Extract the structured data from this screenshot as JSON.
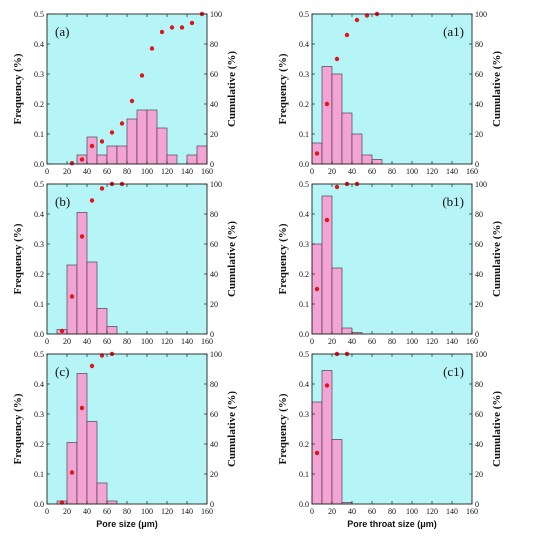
{
  "colors": {
    "plot_background": "#b5f5f7",
    "bar_fill": "#f4a4d4",
    "bar_stroke": "#333333",
    "cumulative_marker": "#e0141a"
  },
  "chart_data": [
    {
      "type": "bar",
      "panel_label": "(a)",
      "xlabel": "",
      "ylabel": "Frequency (%)",
      "ylabel_right": "Cumulative (%)",
      "xlim": [
        0,
        160
      ],
      "ylim": [
        0,
        0.5
      ],
      "ylim_right": [
        0,
        100
      ],
      "x_ticks": [
        0,
        20,
        40,
        60,
        80,
        100,
        120,
        140,
        160
      ],
      "y_ticks": [
        "0.0",
        "0.1",
        "0.2",
        "0.3",
        "0.4",
        "0.5"
      ],
      "y_ticks_right": [
        0,
        20,
        40,
        60,
        80,
        100
      ],
      "bin_width": 10,
      "bars": [
        {
          "x0": 30,
          "value": 0.03
        },
        {
          "x0": 40,
          "value": 0.09
        },
        {
          "x0": 50,
          "value": 0.03
        },
        {
          "x0": 60,
          "value": 0.06
        },
        {
          "x0": 70,
          "value": 0.06
        },
        {
          "x0": 80,
          "value": 0.15
        },
        {
          "x0": 90,
          "value": 0.18
        },
        {
          "x0": 100,
          "value": 0.18
        },
        {
          "x0": 110,
          "value": 0.12
        },
        {
          "x0": 120,
          "value": 0.03
        },
        {
          "x0": 140,
          "value": 0.03
        },
        {
          "x0": 150,
          "value": 0.06
        }
      ],
      "cumulative": [
        {
          "x": 25,
          "y": 0.5
        },
        {
          "x": 35,
          "y": 3
        },
        {
          "x": 45,
          "y": 12
        },
        {
          "x": 55,
          "y": 15
        },
        {
          "x": 65,
          "y": 21
        },
        {
          "x": 75,
          "y": 27
        },
        {
          "x": 85,
          "y": 42
        },
        {
          "x": 95,
          "y": 59
        },
        {
          "x": 105,
          "y": 77
        },
        {
          "x": 115,
          "y": 88
        },
        {
          "x": 125,
          "y": 91
        },
        {
          "x": 135,
          "y": 91
        },
        {
          "x": 145,
          "y": 94
        },
        {
          "x": 155,
          "y": 100
        }
      ]
    },
    {
      "type": "bar",
      "panel_label": "(a1)",
      "xlabel": "",
      "ylabel": "Frequency (%)",
      "ylabel_right": "Cumulative (%)",
      "xlim": [
        0,
        160
      ],
      "ylim": [
        0,
        0.5
      ],
      "ylim_right": [
        0,
        100
      ],
      "x_ticks": [
        0,
        20,
        40,
        60,
        80,
        100,
        120,
        140,
        160
      ],
      "y_ticks": [
        "0.0",
        "0.1",
        "0.2",
        "0.3",
        "0.4",
        "0.5"
      ],
      "y_ticks_right": [
        0,
        20,
        40,
        60,
        80,
        100
      ],
      "bin_width": 10,
      "bars": [
        {
          "x0": 0,
          "value": 0.07
        },
        {
          "x0": 10,
          "value": 0.325
        },
        {
          "x0": 20,
          "value": 0.3
        },
        {
          "x0": 30,
          "value": 0.17
        },
        {
          "x0": 40,
          "value": 0.1
        },
        {
          "x0": 50,
          "value": 0.03
        },
        {
          "x0": 60,
          "value": 0.015
        }
      ],
      "cumulative": [
        {
          "x": 5,
          "y": 7
        },
        {
          "x": 15,
          "y": 40
        },
        {
          "x": 25,
          "y": 70
        },
        {
          "x": 35,
          "y": 86
        },
        {
          "x": 45,
          "y": 96
        },
        {
          "x": 55,
          "y": 99
        },
        {
          "x": 65,
          "y": 100
        }
      ]
    },
    {
      "type": "bar",
      "panel_label": "(b)",
      "xlabel": "",
      "ylabel": "Frequency (%)",
      "ylabel_right": "Cumulative (%)",
      "xlim": [
        0,
        160
      ],
      "ylim": [
        0,
        0.5
      ],
      "ylim_right": [
        0,
        100
      ],
      "x_ticks": [
        0,
        20,
        40,
        60,
        80,
        100,
        120,
        140,
        160
      ],
      "y_ticks": [
        "0.0",
        "0.1",
        "0.2",
        "0.3",
        "0.4",
        "0.5"
      ],
      "y_ticks_right": [
        0,
        20,
        40,
        60,
        80,
        100
      ],
      "bin_width": 10,
      "bars": [
        {
          "x0": 10,
          "value": 0.015
        },
        {
          "x0": 20,
          "value": 0.23
        },
        {
          "x0": 30,
          "value": 0.405
        },
        {
          "x0": 40,
          "value": 0.24
        },
        {
          "x0": 50,
          "value": 0.085
        },
        {
          "x0": 60,
          "value": 0.025
        }
      ],
      "cumulative": [
        {
          "x": 15,
          "y": 2
        },
        {
          "x": 25,
          "y": 25
        },
        {
          "x": 35,
          "y": 65
        },
        {
          "x": 45,
          "y": 89
        },
        {
          "x": 55,
          "y": 97
        },
        {
          "x": 65,
          "y": 100
        },
        {
          "x": 75,
          "y": 100
        }
      ]
    },
    {
      "type": "bar",
      "panel_label": "(b1)",
      "xlabel": "",
      "ylabel": "Frequency (%)",
      "ylabel_right": "Cumulative (%)",
      "xlim": [
        0,
        160
      ],
      "ylim": [
        0,
        0.5
      ],
      "ylim_right": [
        0,
        100
      ],
      "x_ticks": [
        0,
        20,
        40,
        60,
        80,
        100,
        120,
        140,
        160
      ],
      "y_ticks": [
        "0.0",
        "0.1",
        "0.2",
        "0.3",
        "0.4",
        "0.5"
      ],
      "y_ticks_right": [
        0,
        20,
        40,
        60,
        80,
        100
      ],
      "bin_width": 10,
      "bars": [
        {
          "x0": 0,
          "value": 0.3
        },
        {
          "x0": 10,
          "value": 0.46
        },
        {
          "x0": 20,
          "value": 0.22
        },
        {
          "x0": 30,
          "value": 0.02
        },
        {
          "x0": 40,
          "value": 0.005
        }
      ],
      "cumulative": [
        {
          "x": 5,
          "y": 30
        },
        {
          "x": 15,
          "y": 76
        },
        {
          "x": 25,
          "y": 98
        },
        {
          "x": 35,
          "y": 100
        },
        {
          "x": 45,
          "y": 100
        }
      ]
    },
    {
      "type": "bar",
      "panel_label": "(c)",
      "xlabel": "Pore size (μm)",
      "ylabel": "Frequency (%)",
      "ylabel_right": "Cumulative (%)",
      "xlim": [
        0,
        160
      ],
      "ylim": [
        0,
        0.5
      ],
      "ylim_right": [
        0,
        100
      ],
      "x_ticks": [
        0,
        20,
        40,
        60,
        80,
        100,
        120,
        140,
        160
      ],
      "y_ticks": [
        "0.0",
        "0.1",
        "0.2",
        "0.3",
        "0.4",
        "0.5"
      ],
      "y_ticks_right": [
        0,
        20,
        40,
        60,
        80,
        100
      ],
      "bin_width": 10,
      "bars": [
        {
          "x0": 10,
          "value": 0.01
        },
        {
          "x0": 20,
          "value": 0.205
        },
        {
          "x0": 30,
          "value": 0.435
        },
        {
          "x0": 40,
          "value": 0.275
        },
        {
          "x0": 50,
          "value": 0.07
        },
        {
          "x0": 60,
          "value": 0.01
        }
      ],
      "cumulative": [
        {
          "x": 15,
          "y": 1
        },
        {
          "x": 25,
          "y": 21
        },
        {
          "x": 35,
          "y": 64
        },
        {
          "x": 45,
          "y": 92
        },
        {
          "x": 55,
          "y": 99
        },
        {
          "x": 65,
          "y": 100
        }
      ]
    },
    {
      "type": "bar",
      "panel_label": "(c1)",
      "xlabel": "Pore throat size (μm)",
      "ylabel": "Frequency (%)",
      "ylabel_right": "Cumulative (%)",
      "xlim": [
        0,
        160
      ],
      "ylim": [
        0,
        0.5
      ],
      "ylim_right": [
        0,
        100
      ],
      "x_ticks": [
        0,
        20,
        40,
        60,
        80,
        100,
        120,
        140,
        160
      ],
      "y_ticks": [
        "0.0",
        "0.1",
        "0.2",
        "0.3",
        "0.4",
        "0.5"
      ],
      "y_ticks_right": [
        0,
        20,
        40,
        60,
        80,
        100
      ],
      "bin_width": 10,
      "bars": [
        {
          "x0": 0,
          "value": 0.34
        },
        {
          "x0": 10,
          "value": 0.445
        },
        {
          "x0": 20,
          "value": 0.215
        },
        {
          "x0": 30,
          "value": 0.005
        }
      ],
      "cumulative": [
        {
          "x": 5,
          "y": 34
        },
        {
          "x": 15,
          "y": 79
        },
        {
          "x": 25,
          "y": 100
        },
        {
          "x": 35,
          "y": 100
        }
      ]
    }
  ]
}
